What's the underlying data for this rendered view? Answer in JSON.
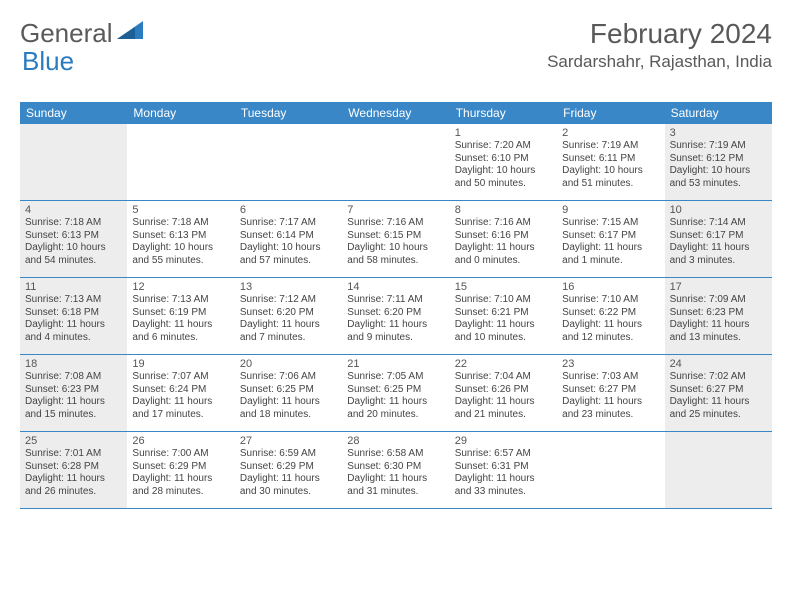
{
  "logo": {
    "general": "General",
    "blue": "Blue"
  },
  "title": "February 2024",
  "location": "Sardarshahr, Rajasthan, India",
  "colors": {
    "header_bg": "#3a87c7",
    "shaded_bg": "#ededed",
    "border": "#3a87c7",
    "text": "#444444",
    "title_text": "#595959"
  },
  "dayheaders": [
    "Sunday",
    "Monday",
    "Tuesday",
    "Wednesday",
    "Thursday",
    "Friday",
    "Saturday"
  ],
  "weeks": [
    [
      {
        "n": "",
        "sr": "",
        "ss": "",
        "d1": "",
        "d2": "",
        "shaded": true
      },
      {
        "n": "",
        "sr": "",
        "ss": "",
        "d1": "",
        "d2": "",
        "shaded": false
      },
      {
        "n": "",
        "sr": "",
        "ss": "",
        "d1": "",
        "d2": "",
        "shaded": false
      },
      {
        "n": "",
        "sr": "",
        "ss": "",
        "d1": "",
        "d2": "",
        "shaded": false
      },
      {
        "n": "1",
        "sr": "Sunrise: 7:20 AM",
        "ss": "Sunset: 6:10 PM",
        "d1": "Daylight: 10 hours",
        "d2": "and 50 minutes.",
        "shaded": false
      },
      {
        "n": "2",
        "sr": "Sunrise: 7:19 AM",
        "ss": "Sunset: 6:11 PM",
        "d1": "Daylight: 10 hours",
        "d2": "and 51 minutes.",
        "shaded": false
      },
      {
        "n": "3",
        "sr": "Sunrise: 7:19 AM",
        "ss": "Sunset: 6:12 PM",
        "d1": "Daylight: 10 hours",
        "d2": "and 53 minutes.",
        "shaded": true
      }
    ],
    [
      {
        "n": "4",
        "sr": "Sunrise: 7:18 AM",
        "ss": "Sunset: 6:13 PM",
        "d1": "Daylight: 10 hours",
        "d2": "and 54 minutes.",
        "shaded": true
      },
      {
        "n": "5",
        "sr": "Sunrise: 7:18 AM",
        "ss": "Sunset: 6:13 PM",
        "d1": "Daylight: 10 hours",
        "d2": "and 55 minutes.",
        "shaded": false
      },
      {
        "n": "6",
        "sr": "Sunrise: 7:17 AM",
        "ss": "Sunset: 6:14 PM",
        "d1": "Daylight: 10 hours",
        "d2": "and 57 minutes.",
        "shaded": false
      },
      {
        "n": "7",
        "sr": "Sunrise: 7:16 AM",
        "ss": "Sunset: 6:15 PM",
        "d1": "Daylight: 10 hours",
        "d2": "and 58 minutes.",
        "shaded": false
      },
      {
        "n": "8",
        "sr": "Sunrise: 7:16 AM",
        "ss": "Sunset: 6:16 PM",
        "d1": "Daylight: 11 hours",
        "d2": "and 0 minutes.",
        "shaded": false
      },
      {
        "n": "9",
        "sr": "Sunrise: 7:15 AM",
        "ss": "Sunset: 6:17 PM",
        "d1": "Daylight: 11 hours",
        "d2": "and 1 minute.",
        "shaded": false
      },
      {
        "n": "10",
        "sr": "Sunrise: 7:14 AM",
        "ss": "Sunset: 6:17 PM",
        "d1": "Daylight: 11 hours",
        "d2": "and 3 minutes.",
        "shaded": true
      }
    ],
    [
      {
        "n": "11",
        "sr": "Sunrise: 7:13 AM",
        "ss": "Sunset: 6:18 PM",
        "d1": "Daylight: 11 hours",
        "d2": "and 4 minutes.",
        "shaded": true
      },
      {
        "n": "12",
        "sr": "Sunrise: 7:13 AM",
        "ss": "Sunset: 6:19 PM",
        "d1": "Daylight: 11 hours",
        "d2": "and 6 minutes.",
        "shaded": false
      },
      {
        "n": "13",
        "sr": "Sunrise: 7:12 AM",
        "ss": "Sunset: 6:20 PM",
        "d1": "Daylight: 11 hours",
        "d2": "and 7 minutes.",
        "shaded": false
      },
      {
        "n": "14",
        "sr": "Sunrise: 7:11 AM",
        "ss": "Sunset: 6:20 PM",
        "d1": "Daylight: 11 hours",
        "d2": "and 9 minutes.",
        "shaded": false
      },
      {
        "n": "15",
        "sr": "Sunrise: 7:10 AM",
        "ss": "Sunset: 6:21 PM",
        "d1": "Daylight: 11 hours",
        "d2": "and 10 minutes.",
        "shaded": false
      },
      {
        "n": "16",
        "sr": "Sunrise: 7:10 AM",
        "ss": "Sunset: 6:22 PM",
        "d1": "Daylight: 11 hours",
        "d2": "and 12 minutes.",
        "shaded": false
      },
      {
        "n": "17",
        "sr": "Sunrise: 7:09 AM",
        "ss": "Sunset: 6:23 PM",
        "d1": "Daylight: 11 hours",
        "d2": "and 13 minutes.",
        "shaded": true
      }
    ],
    [
      {
        "n": "18",
        "sr": "Sunrise: 7:08 AM",
        "ss": "Sunset: 6:23 PM",
        "d1": "Daylight: 11 hours",
        "d2": "and 15 minutes.",
        "shaded": true
      },
      {
        "n": "19",
        "sr": "Sunrise: 7:07 AM",
        "ss": "Sunset: 6:24 PM",
        "d1": "Daylight: 11 hours",
        "d2": "and 17 minutes.",
        "shaded": false
      },
      {
        "n": "20",
        "sr": "Sunrise: 7:06 AM",
        "ss": "Sunset: 6:25 PM",
        "d1": "Daylight: 11 hours",
        "d2": "and 18 minutes.",
        "shaded": false
      },
      {
        "n": "21",
        "sr": "Sunrise: 7:05 AM",
        "ss": "Sunset: 6:25 PM",
        "d1": "Daylight: 11 hours",
        "d2": "and 20 minutes.",
        "shaded": false
      },
      {
        "n": "22",
        "sr": "Sunrise: 7:04 AM",
        "ss": "Sunset: 6:26 PM",
        "d1": "Daylight: 11 hours",
        "d2": "and 21 minutes.",
        "shaded": false
      },
      {
        "n": "23",
        "sr": "Sunrise: 7:03 AM",
        "ss": "Sunset: 6:27 PM",
        "d1": "Daylight: 11 hours",
        "d2": "and 23 minutes.",
        "shaded": false
      },
      {
        "n": "24",
        "sr": "Sunrise: 7:02 AM",
        "ss": "Sunset: 6:27 PM",
        "d1": "Daylight: 11 hours",
        "d2": "and 25 minutes.",
        "shaded": true
      }
    ],
    [
      {
        "n": "25",
        "sr": "Sunrise: 7:01 AM",
        "ss": "Sunset: 6:28 PM",
        "d1": "Daylight: 11 hours",
        "d2": "and 26 minutes.",
        "shaded": true
      },
      {
        "n": "26",
        "sr": "Sunrise: 7:00 AM",
        "ss": "Sunset: 6:29 PM",
        "d1": "Daylight: 11 hours",
        "d2": "and 28 minutes.",
        "shaded": false
      },
      {
        "n": "27",
        "sr": "Sunrise: 6:59 AM",
        "ss": "Sunset: 6:29 PM",
        "d1": "Daylight: 11 hours",
        "d2": "and 30 minutes.",
        "shaded": false
      },
      {
        "n": "28",
        "sr": "Sunrise: 6:58 AM",
        "ss": "Sunset: 6:30 PM",
        "d1": "Daylight: 11 hours",
        "d2": "and 31 minutes.",
        "shaded": false
      },
      {
        "n": "29",
        "sr": "Sunrise: 6:57 AM",
        "ss": "Sunset: 6:31 PM",
        "d1": "Daylight: 11 hours",
        "d2": "and 33 minutes.",
        "shaded": false
      },
      {
        "n": "",
        "sr": "",
        "ss": "",
        "d1": "",
        "d2": "",
        "shaded": false
      },
      {
        "n": "",
        "sr": "",
        "ss": "",
        "d1": "",
        "d2": "",
        "shaded": true
      }
    ]
  ]
}
